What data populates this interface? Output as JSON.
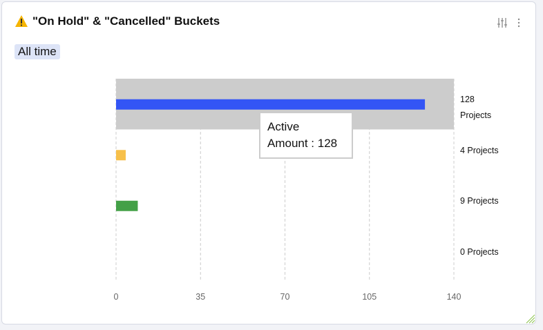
{
  "chart_data": {
    "type": "hbar",
    "title": "\"On Hold\" & \"Cancelled\" Buckets",
    "subtitle": "All time",
    "categories": [
      "Active",
      null,
      null,
      null
    ],
    "values": [
      128,
      4,
      9,
      0
    ],
    "value_labels": [
      "128 Projects",
      "4 Projects",
      "9 Projects",
      "0 Projects"
    ],
    "colors": [
      "#3355f5",
      "#f7c04a",
      "#43a047",
      "#9e9e9e"
    ],
    "xlim": [
      0,
      140
    ],
    "xticks": [
      0,
      35,
      70,
      105,
      140
    ],
    "grid": true,
    "tooltip": "Amount : 128"
  }
}
